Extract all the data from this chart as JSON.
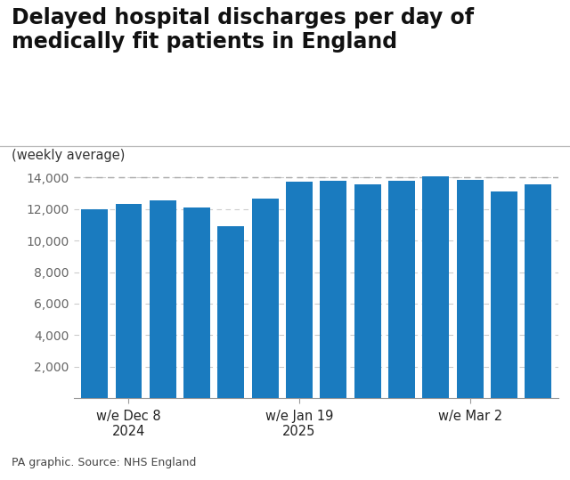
{
  "title": "Delayed hospital discharges per day of\nmedically fit patients in England",
  "subtitle": "(weekly average)",
  "source": "PA graphic. Source: NHS England",
  "bar_color": "#1a7bbf",
  "background_color": "#ffffff",
  "values": [
    12000,
    12300,
    12550,
    12100,
    10900,
    12650,
    13700,
    13800,
    13550,
    13800,
    14050,
    13850,
    13100,
    13550
  ],
  "xtick_positions": [
    1,
    6,
    11
  ],
  "xtick_labels": [
    "w/e Dec 8\n2024",
    "w/e Jan 19\n2025",
    "w/e Mar 2"
  ],
  "ytick_values": [
    2000,
    4000,
    6000,
    8000,
    10000,
    12000,
    14000
  ],
  "ylim": [
    0,
    15200
  ],
  "dashed_line_y": 14000,
  "title_fontsize": 17,
  "subtitle_fontsize": 10.5,
  "source_fontsize": 9,
  "ytick_fontsize": 10,
  "xtick_fontsize": 10.5
}
